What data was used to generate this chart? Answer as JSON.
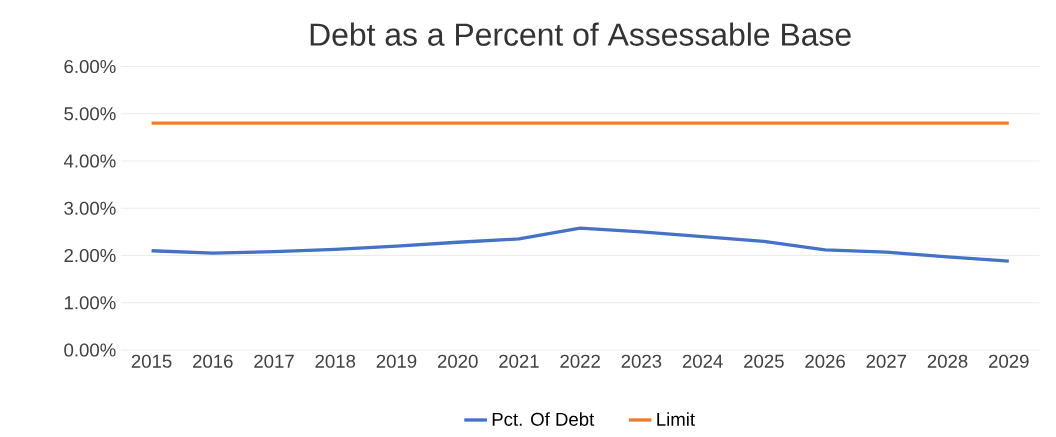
{
  "chart_data": {
    "type": "line",
    "title": "Debt as a Percent of Assessable Base",
    "categories": [
      "2015",
      "2016",
      "2017",
      "2018",
      "2019",
      "2020",
      "2021",
      "2022",
      "2023",
      "2024",
      "2025",
      "2026",
      "2027",
      "2028",
      "2029"
    ],
    "series": [
      {
        "name": "Pct. Of Debt",
        "color": "#4472c4",
        "values": [
          2.1,
          2.05,
          2.08,
          2.13,
          2.2,
          2.28,
          2.35,
          2.58,
          2.5,
          2.4,
          2.3,
          2.12,
          2.07,
          1.97,
          1.88
        ]
      },
      {
        "name": "Limit",
        "color": "#ed7d31",
        "values": [
          4.8,
          4.8,
          4.8,
          4.8,
          4.8,
          4.8,
          4.8,
          4.8,
          4.8,
          4.8,
          4.8,
          4.8,
          4.8,
          4.8,
          4.8
        ]
      }
    ],
    "ylim": [
      0,
      6
    ],
    "yticks": [
      {
        "value": 0,
        "label": "0.00%"
      },
      {
        "value": 1,
        "label": "1.00%"
      },
      {
        "value": 2,
        "label": "2.00%"
      },
      {
        "value": 3,
        "label": "3.00%"
      },
      {
        "value": 4,
        "label": "4.00%"
      },
      {
        "value": 5,
        "label": "5.00%"
      },
      {
        "value": 6,
        "label": "6.00%"
      }
    ],
    "grid": "y",
    "legend": "bottom",
    "marker": "none",
    "line_style": "solid"
  }
}
